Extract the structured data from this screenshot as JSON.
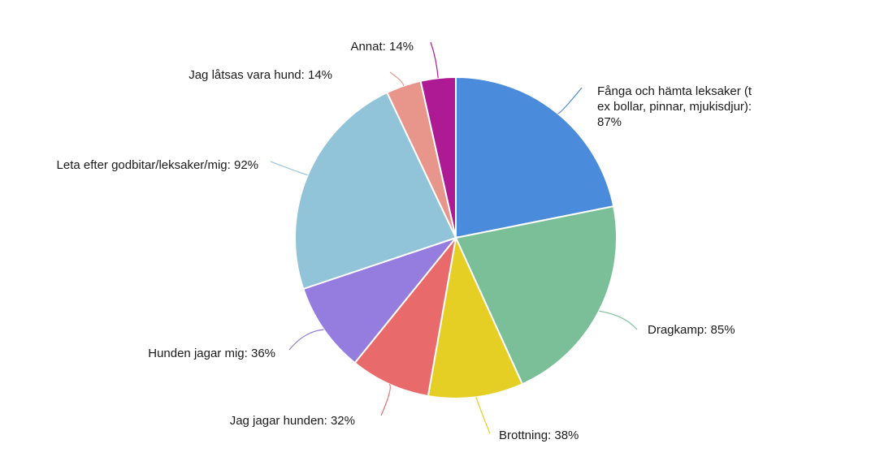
{
  "chart_data": {
    "type": "pie",
    "title": "",
    "start_angle_deg": 0,
    "direction": "clockwise",
    "slices": [
      {
        "label_lines": [
          "Fånga och hämta leksaker (t",
          "ex bollar, pinnar, mjukisdjur):",
          "87%"
        ],
        "name": "Fånga och hämta leksaker (t ex bollar, pinnar, mjukisdjur)",
        "percent_text": "87%",
        "value": 87,
        "color": "#4a8bdb"
      },
      {
        "label_lines": [
          "Dragkamp: 85%"
        ],
        "name": "Dragkamp",
        "percent_text": "85%",
        "value": 85,
        "color": "#7bbf98"
      },
      {
        "label_lines": [
          "Brottning: 38%"
        ],
        "name": "Brottning",
        "percent_text": "38%",
        "value": 38,
        "color": "#e5cf24"
      },
      {
        "label_lines": [
          "Jag jagar hunden: 32%"
        ],
        "name": "Jag jagar hunden",
        "percent_text": "32%",
        "value": 32,
        "color": "#e86a6a"
      },
      {
        "label_lines": [
          "Hunden jagar mig: 36%"
        ],
        "name": "Hunden jagar mig",
        "percent_text": "36%",
        "value": 36,
        "color": "#957de0"
      },
      {
        "label_lines": [
          "Leta efter godbitar/leksaker/mig: 92%"
        ],
        "name": "Leta efter godbitar/leksaker/mig",
        "percent_text": "92%",
        "value": 92,
        "color": "#91c4d8"
      },
      {
        "label_lines": [
          "Jag låtsas vara hund: 14%"
        ],
        "name": "Jag låtsas vara hund",
        "percent_text": "14%",
        "value": 14,
        "color": "#e8968c"
      },
      {
        "label_lines": [
          "Annat: 14%"
        ],
        "name": "Annat",
        "percent_text": "14%",
        "value": 14,
        "color": "#ad1a93"
      }
    ]
  }
}
